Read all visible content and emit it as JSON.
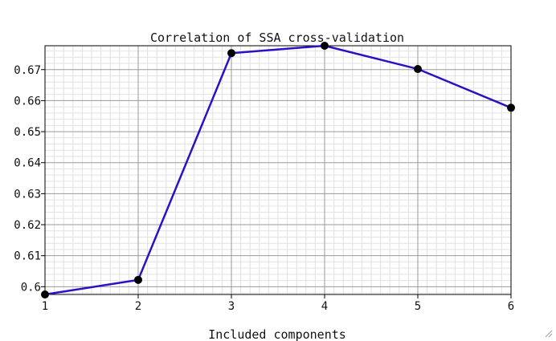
{
  "chart_data": {
    "type": "line",
    "title": "Correlation of SSA cross-validation",
    "xlabel": "Included components",
    "ylabel": "",
    "xlim": [
      1,
      6
    ],
    "ylim": [
      0.5975,
      0.6777
    ],
    "x_ticks": [
      "1",
      "2",
      "3",
      "4",
      "5",
      "6"
    ],
    "y_ticks": [
      "0.6",
      "0.61",
      "0.62",
      "0.63",
      "0.64",
      "0.65",
      "0.66",
      "0.67"
    ],
    "grid": true,
    "legend": "none",
    "series": [
      {
        "x": [
          1,
          2,
          3,
          4,
          5,
          6
        ],
        "y": [
          0.5975,
          0.6022,
          0.6753,
          0.6777,
          0.6702,
          0.6577
        ],
        "color": "#2a12c4",
        "marker_color": "#000000"
      }
    ]
  }
}
